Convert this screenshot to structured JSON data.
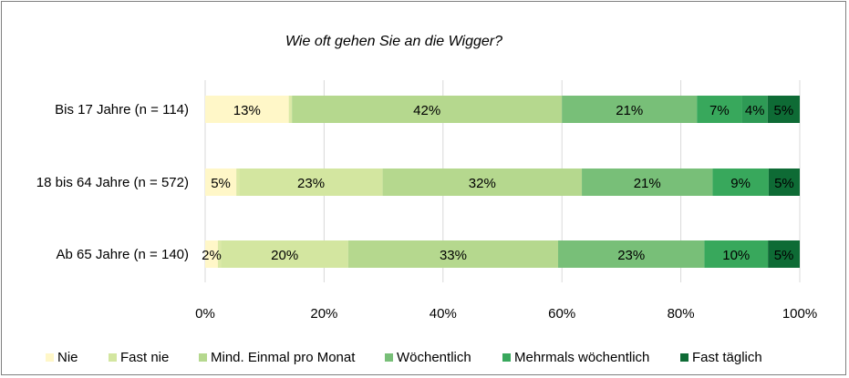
{
  "chart_data": {
    "type": "bar",
    "orientation": "horizontal",
    "stacked": "percent",
    "title": "Wie oft gehen Sie an die Wigger?",
    "categories": [
      "Bis 17 Jahre (n = 114)",
      "18 bis 64 Jahre (n = 572)",
      "Ab 65 Jahre (n = 140)"
    ],
    "series": [
      {
        "name": "Nie",
        "color": "#fff7c8",
        "values": [
          13,
          5,
          2
        ],
        "labels": [
          "13%",
          "5%",
          "2%"
        ]
      },
      {
        "name": "Fast nie",
        "color": "#dbe9a6",
        "values": [
          0.5,
          0.5,
          0.5
        ],
        "labels": [
          "",
          "",
          ""
        ]
      },
      {
        "name": "Fast nie",
        "color": "#d3e6a0",
        "values": [
          0,
          23,
          20
        ],
        "labels": [
          "",
          "23%",
          "20%"
        ]
      },
      {
        "name": "Mind. Einmal pro Monat",
        "color": "#b5d88e",
        "values": [
          42,
          32,
          33
        ],
        "labels": [
          "42%",
          "32%",
          "33%"
        ]
      },
      {
        "name": "Wöchentlich",
        "color": "#78bf78",
        "values": [
          21,
          21,
          23
        ],
        "labels": [
          "21%",
          "21%",
          "23%"
        ]
      },
      {
        "name": "Mehrmals wöchentlich",
        "color": "#38a85c",
        "values": [
          7,
          9,
          10
        ],
        "labels": [
          "7%",
          "9%",
          "10%"
        ]
      },
      {
        "name": "Mehrmals wöchentlich",
        "color": "#2e9a55",
        "values": [
          4,
          0,
          0
        ],
        "labels": [
          "4%",
          "",
          ""
        ]
      },
      {
        "name": "Fast täglich",
        "color": "#0e6b35",
        "values": [
          5,
          5,
          5
        ],
        "labels": [
          "5%",
          "5%",
          "5%"
        ]
      }
    ],
    "x_ticks": [
      "0%",
      "20%",
      "40%",
      "60%",
      "80%",
      "100%"
    ],
    "xlim": [
      0,
      100
    ],
    "grid": true,
    "legend": {
      "position": "bottom",
      "entries": [
        {
          "name": "Nie",
          "color": "#fff7c8"
        },
        {
          "name": "Fast nie",
          "color": "#d3e6a0"
        },
        {
          "name": "Mind. Einmal pro Monat",
          "color": "#b5d88e"
        },
        {
          "name": "Wöchentlich",
          "color": "#78bf78"
        },
        {
          "name": "Mehrmals wöchentlich",
          "color": "#38a85c"
        },
        {
          "name": "Fast täglich",
          "color": "#0e6b35"
        }
      ]
    }
  }
}
